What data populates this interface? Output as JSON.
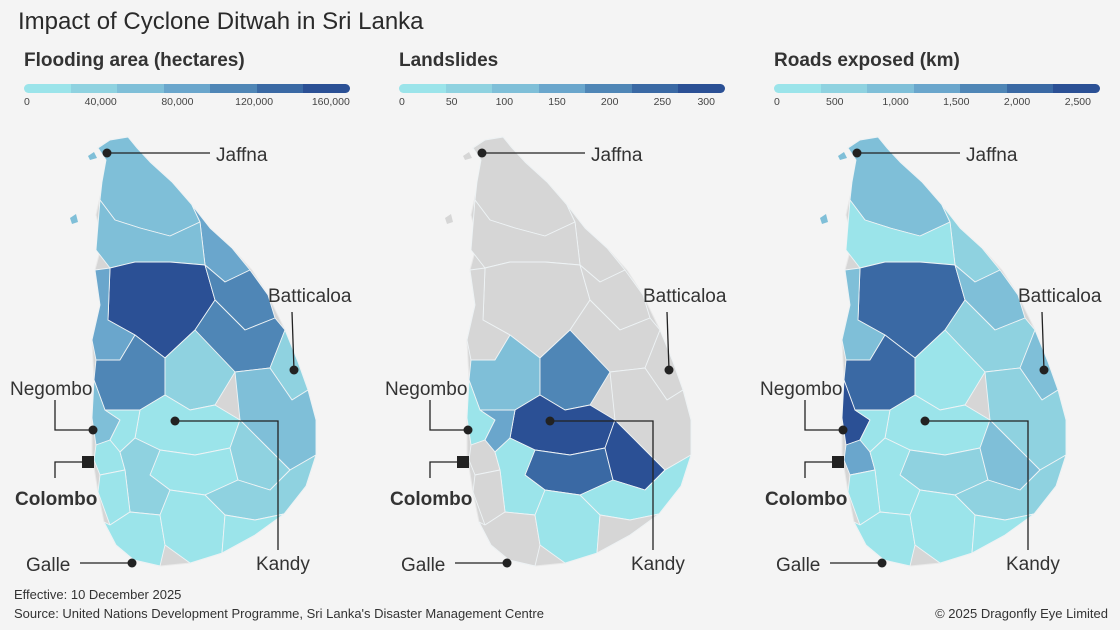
{
  "title": "Impact of Cyclone Ditwah in Sri Lanka",
  "colors": {
    "scale": [
      "#9be4ea",
      "#8fd2e0",
      "#7fbfd8",
      "#6aa6cc",
      "#4f86b6",
      "#3a69a4",
      "#2b5095"
    ],
    "no_data": "#d6d6d6",
    "background": "#f4f4f4"
  },
  "panels": [
    {
      "title": "Flooding area (hectares)",
      "ticks": [
        "0",
        "40,000",
        "80,000",
        "120,000",
        "160,000"
      ],
      "tick_values": [
        0,
        40000,
        80000,
        120000,
        160000
      ],
      "legend_max": 170000
    },
    {
      "title": "Landslides",
      "ticks": [
        "0",
        "50",
        "100",
        "150",
        "200",
        "250",
        "300"
      ],
      "tick_values": [
        0,
        50,
        100,
        150,
        200,
        250,
        300
      ],
      "legend_max": 300
    },
    {
      "title": "Roads exposed (km)",
      "ticks": [
        "0",
        "500",
        "1,000",
        "1,500",
        "2,000",
        "2,500"
      ],
      "tick_values": [
        0,
        500,
        1000,
        1500,
        2000,
        2500
      ],
      "legend_max": 2600
    }
  ],
  "cities": {
    "jaffna": "Jaffna",
    "batticaloa": "Batticaloa",
    "negombo": "Negombo",
    "colombo": "Colombo",
    "kandy": "Kandy",
    "galle": "Galle"
  },
  "footer": {
    "effective": "Effective: 10 December 2025",
    "source": "Source: United Nations Development Programme, Sri Lanka's Disaster Management Centre",
    "copyright": "© 2025 Dragonfly Eye Limited"
  }
}
